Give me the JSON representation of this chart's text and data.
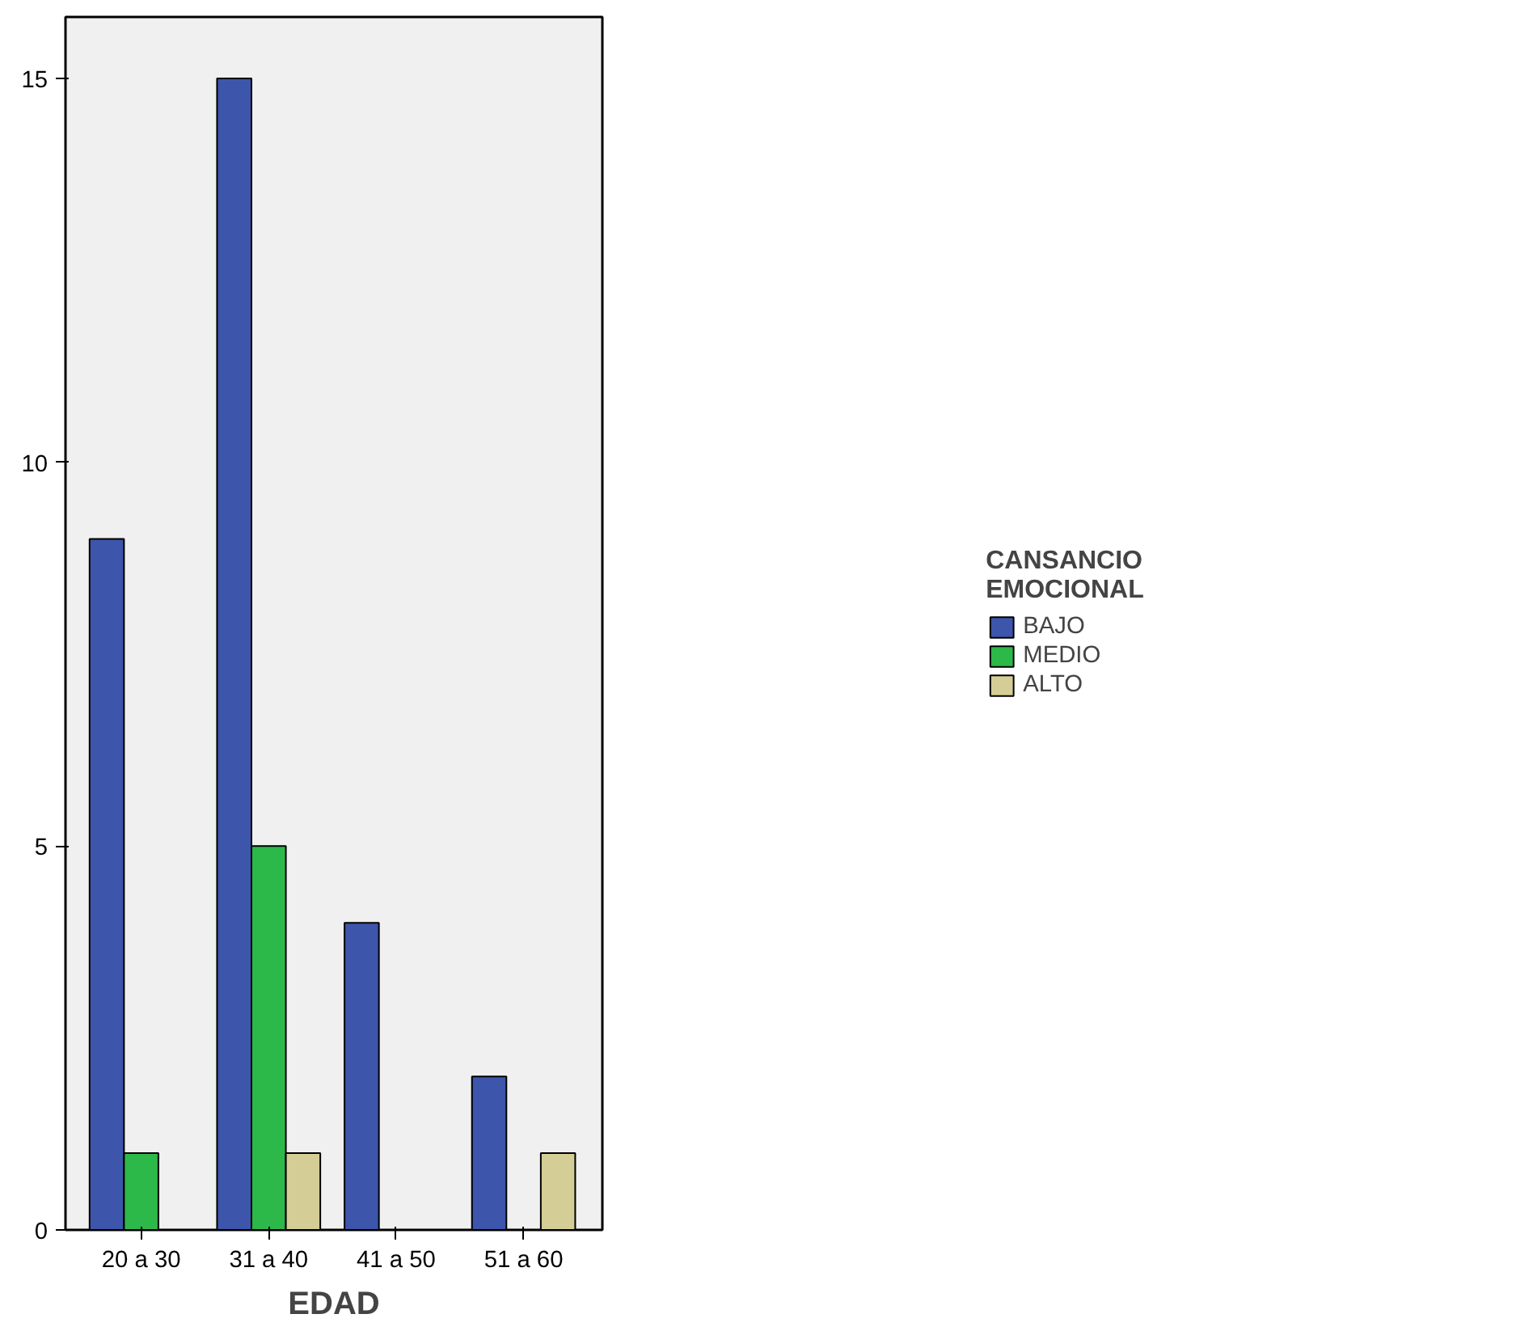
{
  "chart_data": {
    "type": "bar",
    "xlabel": "EDAD",
    "legend_title": "CANSANCIO EMOCIONAL",
    "categories": [
      "20 a 30",
      "31 a 40",
      "41 a 50",
      "51 a 60"
    ],
    "series": [
      {
        "name": "BAJO",
        "color": "#3d55ab",
        "values": [
          9,
          15,
          4,
          2
        ]
      },
      {
        "name": "MEDIO",
        "color": "#2db84a",
        "values": [
          1,
          5,
          null,
          null
        ]
      },
      {
        "name": "ALTO",
        "color": "#d4cd96",
        "values": [
          null,
          1,
          null,
          1
        ]
      }
    ],
    "ylim": [
      0,
      15.8
    ],
    "yticks": [
      0,
      5,
      10,
      15
    ],
    "grid": false,
    "legend": "right"
  }
}
